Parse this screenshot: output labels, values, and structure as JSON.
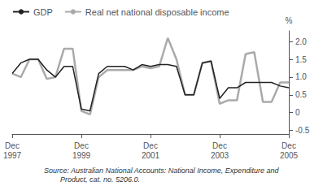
{
  "chart_data": {
    "type": "line",
    "ylabel": "%",
    "source": "Source: Australian National Accounts: National Income, Expenditure and\n        Product, cat. no. 5206.0.",
    "categories": [
      "Dec\n1997",
      null,
      null,
      null,
      null,
      null,
      null,
      null,
      "Dec\n1999",
      null,
      null,
      null,
      null,
      null,
      null,
      null,
      "Dec\n2001",
      null,
      null,
      null,
      null,
      null,
      null,
      null,
      "Dec\n2003",
      null,
      null,
      null,
      null,
      null,
      null,
      null,
      "Dec\n2005"
    ],
    "series": [
      {
        "name": "GDP",
        "color": "#222222",
        "values": [
          1.1,
          1.4,
          1.5,
          1.5,
          1.2,
          1.0,
          1.3,
          1.3,
          0.1,
          0.05,
          1.1,
          1.3,
          1.3,
          1.3,
          1.2,
          1.35,
          1.3,
          1.35,
          1.35,
          1.3,
          0.5,
          0.5,
          1.4,
          1.45,
          0.4,
          0.7,
          0.7,
          0.85,
          0.85,
          0.85,
          0.85,
          0.75,
          0.7
        ]
      },
      {
        "name": "Real net national disposable income",
        "color": "#aaaaaa",
        "values": [
          1.1,
          1.0,
          1.5,
          1.5,
          0.95,
          1.0,
          1.8,
          1.8,
          0.05,
          -0.05,
          1.0,
          1.2,
          1.2,
          1.2,
          1.2,
          1.3,
          1.25,
          1.3,
          2.1,
          1.5,
          0.5,
          0.5,
          1.4,
          1.45,
          0.25,
          0.35,
          0.35,
          1.65,
          1.7,
          0.3,
          0.3,
          0.85,
          0.85
        ]
      }
    ],
    "ylim": [
      -0.6,
      2.3
    ],
    "yticks": [
      -0.5,
      0,
      0.5,
      {
        "value": 1.0,
        "label": "1.0"
      },
      1.5,
      {
        "value": 2.0,
        "label": "2.0"
      }
    ],
    "grid": false,
    "legend": "upper left"
  }
}
